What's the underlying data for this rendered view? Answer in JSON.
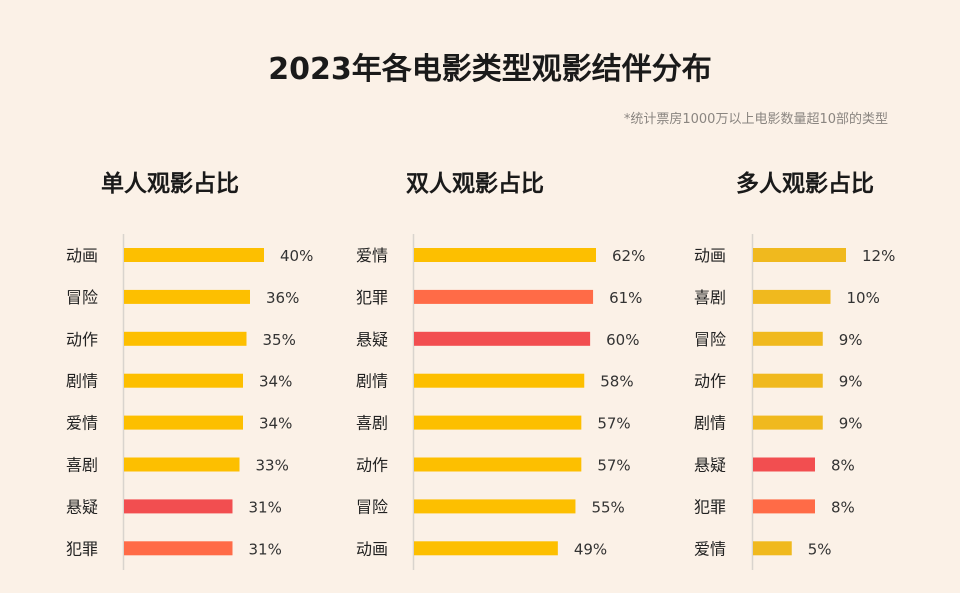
{
  "chart_data": {
    "title": "2023年各电影类型观影结伴分布",
    "note": "*统计票房1000万以上电影数量超10部的类型",
    "type": "bar",
    "orientation": "horizontal",
    "unit": "%",
    "colors": {
      "default": "#fdbf00",
      "default_muted": "#f0b91e",
      "悬疑": "#f24e50",
      "犯罪": "#ff6b47"
    },
    "panels": [
      {
        "title": "单人观影占比",
        "categories": [
          "动画",
          "冒险",
          "动作",
          "剧情",
          "爱情",
          "喜剧",
          "悬疑",
          "犯罪"
        ],
        "values": [
          40,
          36,
          35,
          34,
          34,
          33,
          31,
          31
        ]
      },
      {
        "title": "双人观影占比",
        "categories": [
          "爱情",
          "犯罪",
          "悬疑",
          "剧情",
          "喜剧",
          "动作",
          "冒险",
          "动画"
        ],
        "values": [
          62,
          61,
          60,
          58,
          57,
          57,
          55,
          49
        ]
      },
      {
        "title": "多人观影占比",
        "categories": [
          "动画",
          "喜剧",
          "冒险",
          "动作",
          "剧情",
          "悬疑",
          "犯罪",
          "爱情"
        ],
        "values": [
          12,
          10,
          9,
          9,
          9,
          8,
          8,
          5
        ]
      }
    ]
  }
}
